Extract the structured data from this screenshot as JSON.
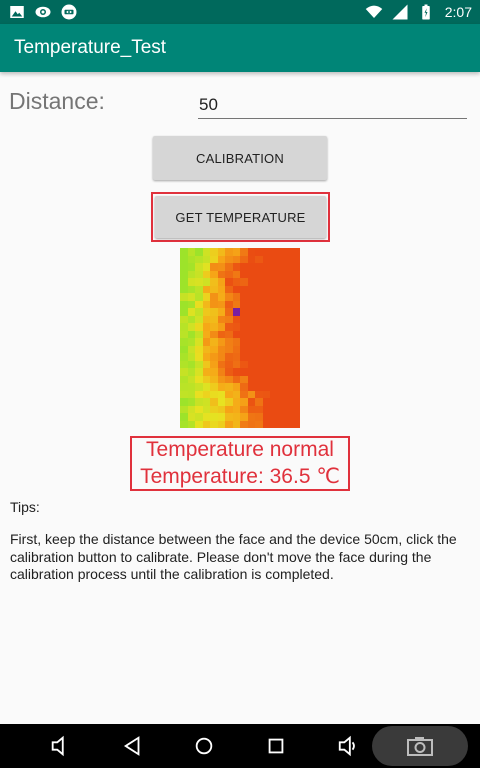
{
  "status_bar": {
    "time": "2:07",
    "icons_left": [
      "image-icon",
      "eye-icon",
      "remote-icon"
    ],
    "icons_right": [
      "wifi-icon",
      "signal-icon",
      "battery-icon"
    ]
  },
  "app_bar": {
    "title": "Temperature_Test"
  },
  "distance": {
    "label": "Distance:",
    "value": "50"
  },
  "buttons": {
    "calibration": "CALIBRATION",
    "get_temperature": "GET TEMPERATURE"
  },
  "thermal_image": {
    "grid_cols": 16,
    "grid_rows": 24,
    "colors": {
      "cool": "#9de32a",
      "warm": "#f6a717",
      "hot": "#ea4b12",
      "peak": "#7a1fa0"
    }
  },
  "result": {
    "status": "Temperature normal",
    "temperature": "Temperature: 36.5 ℃"
  },
  "tips": {
    "title": "Tips:",
    "body": "First, keep the distance between the face and the device 50cm, click the calibration button to calibrate. Please don't move the face during the calibration process until the calibration is completed."
  },
  "nav_bar": {
    "icons": [
      "volume-down-icon",
      "back-icon",
      "home-icon",
      "recents-icon",
      "volume-up-icon",
      "camera-icon"
    ]
  }
}
